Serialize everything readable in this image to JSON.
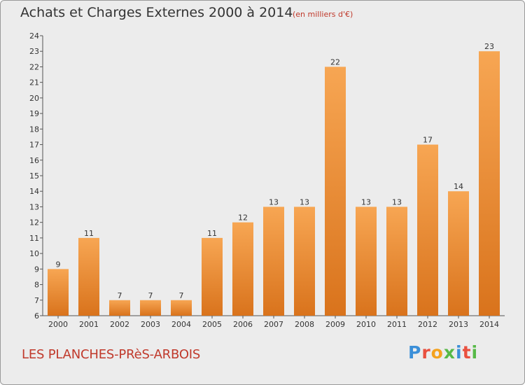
{
  "header": {
    "title": "Achats et Charges Externes 2000 à 2014",
    "unit": "(en milliers d'€)"
  },
  "footer": {
    "commune": "LES PLANCHES-PRèS-ARBOIS",
    "logo": "Proxiti"
  },
  "colors": {
    "bar_light": "#f7a653",
    "bar_dark": "#d9731c",
    "accent_red": "#c0392b",
    "logo_letters": [
      "#3b8fd8",
      "#e9503f",
      "#f4a21e",
      "#57b947",
      "#3b8fd8",
      "#e9503f",
      "#57b947"
    ]
  },
  "chart_data": {
    "type": "bar",
    "title": "Achats et Charges Externes 2000 à 2014",
    "categories": [
      "2000",
      "2001",
      "2002",
      "2003",
      "2004",
      "2005",
      "2006",
      "2007",
      "2008",
      "2009",
      "2010",
      "2011",
      "2012",
      "2013",
      "2014"
    ],
    "values": [
      9,
      11,
      7,
      7,
      7,
      11,
      12,
      13,
      13,
      22,
      13,
      13,
      17,
      14,
      23
    ],
    "ylim": [
      6,
      24
    ],
    "yticks": [
      6,
      7,
      8,
      9,
      10,
      11,
      12,
      13,
      14,
      15,
      16,
      17,
      18,
      19,
      20,
      21,
      22,
      23,
      24
    ],
    "xlabel": "",
    "ylabel": "",
    "grid": false,
    "legend": "none"
  }
}
